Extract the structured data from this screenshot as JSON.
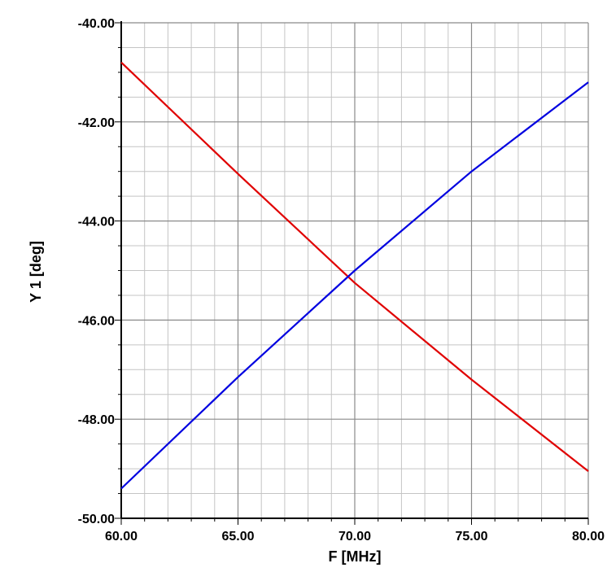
{
  "chart_data": {
    "type": "line",
    "xlabel": "F [MHz]",
    "ylabel": "Y 1  [deg]",
    "xlim": [
      60,
      80
    ],
    "ylim": [
      -50,
      -40
    ],
    "x_ticks": [
      "60.00",
      "65.00",
      "70.00",
      "75.00",
      "80.00"
    ],
    "y_ticks": [
      "-40.00",
      "-42.00",
      "-44.00",
      "-46.00",
      "-48.00",
      "-50.00"
    ],
    "grid": true,
    "series": [
      {
        "color": "#e00000",
        "x": [
          60,
          65,
          70,
          75,
          80
        ],
        "y": [
          -40.8,
          -43.05,
          -45.25,
          -47.2,
          -49.05
        ]
      },
      {
        "color": "#0000e0",
        "x": [
          60,
          65,
          70,
          75,
          80
        ],
        "y": [
          -49.4,
          -47.15,
          -45.0,
          -43.0,
          -41.2
        ]
      }
    ]
  }
}
